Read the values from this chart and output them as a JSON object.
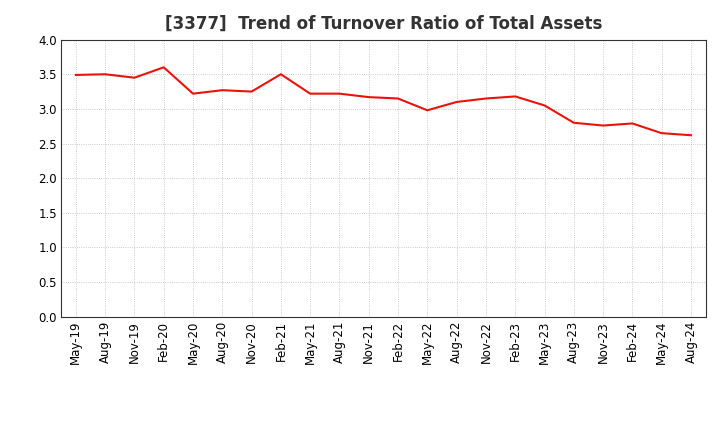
{
  "title": "[3377]  Trend of Turnover Ratio of Total Assets",
  "labels": [
    "May-19",
    "Aug-19",
    "Nov-19",
    "Feb-20",
    "May-20",
    "Aug-20",
    "Nov-20",
    "Feb-21",
    "May-21",
    "Aug-21",
    "Nov-21",
    "Feb-22",
    "May-22",
    "Aug-22",
    "Nov-22",
    "Feb-23",
    "May-23",
    "Aug-23",
    "Nov-23",
    "Feb-24",
    "May-24",
    "Aug-24"
  ],
  "values": [
    3.49,
    3.5,
    3.45,
    3.6,
    3.22,
    3.27,
    3.25,
    3.5,
    3.22,
    3.22,
    3.17,
    3.15,
    2.98,
    3.1,
    3.15,
    3.18,
    3.05,
    2.8,
    2.76,
    2.79,
    2.65,
    2.62
  ],
  "line_color": "#e8140c",
  "bg_color": "#ffffff",
  "plot_bg_color": "#ffffff",
  "grid_color": "#bbbbbb",
  "ylim": [
    0.0,
    4.0
  ],
  "yticks": [
    0.0,
    0.5,
    1.0,
    1.5,
    2.0,
    2.5,
    3.0,
    3.5,
    4.0
  ],
  "title_fontsize": 12,
  "tick_fontsize": 8.5
}
